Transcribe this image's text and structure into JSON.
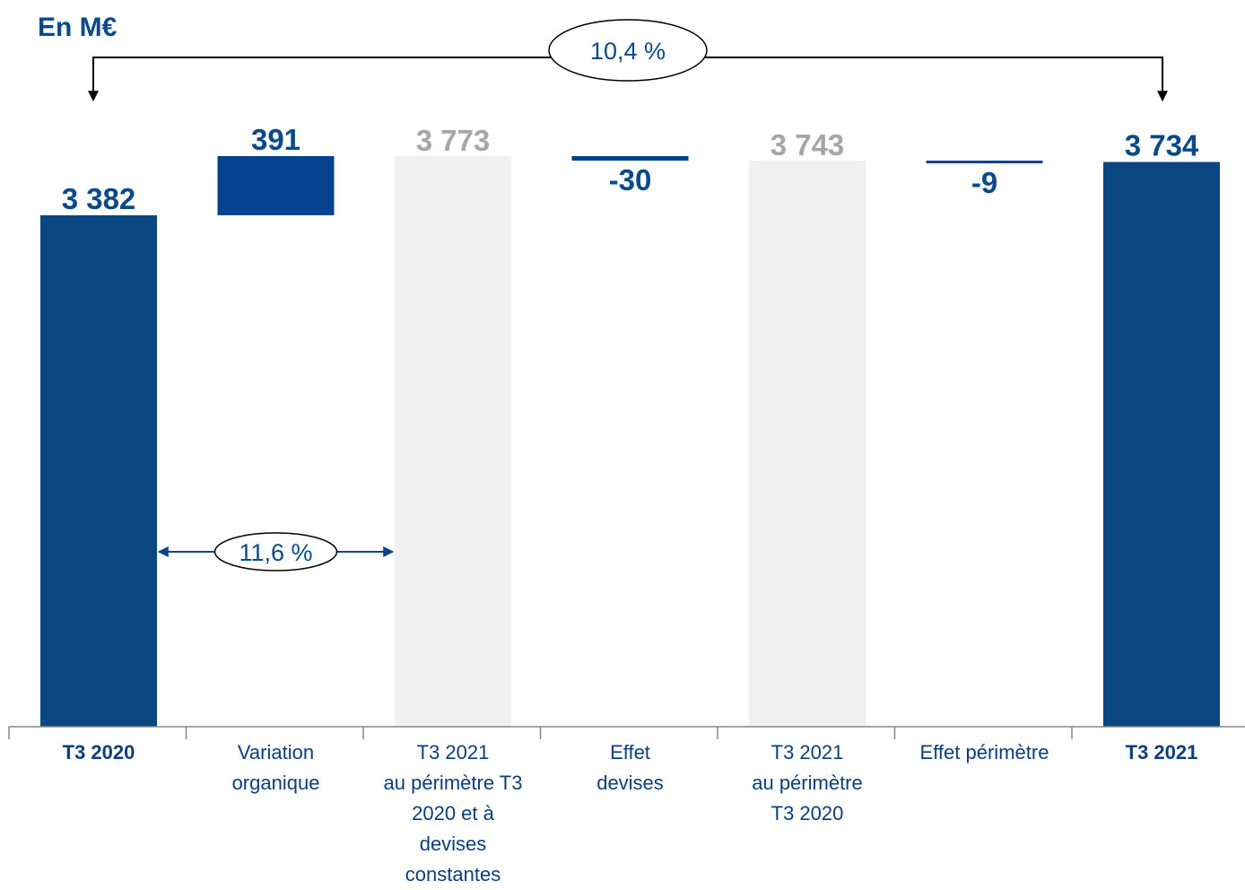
{
  "unit_label": "En M€",
  "chart_data": {
    "type": "bar",
    "subtype": "waterfall",
    "categories": [
      "T3 2020",
      "Variation organique",
      "T3 2021 au périmètre T3 2020 et à devises constantes",
      "Effet devises",
      "T3 2021 au périmètre T3 2020",
      "Effet périmètre",
      "T3 2021"
    ],
    "category_lines": [
      "T3 2020",
      "Variation\norganique",
      "T3 2021\nau périmètre T3\n2020 et à\ndevises\nconstantes",
      "Effet\ndevises",
      "T3 2021\nau périmètre\nT3 2020",
      "Effet périmètre",
      "T3 2021"
    ],
    "bold_categories": [
      0,
      6
    ],
    "values": [
      3382,
      391,
      3773,
      -30,
      3743,
      -9,
      3734
    ],
    "bar_kinds": [
      "total",
      "delta",
      "subtotal",
      "delta",
      "subtotal",
      "delta",
      "total"
    ],
    "value_labels": [
      "3 382",
      "391",
      "3 773",
      "-30",
      "3 743",
      "-9",
      "3 734"
    ],
    "ylim": [
      0,
      3773
    ],
    "annotations": [
      {
        "text": "10,4 %",
        "from": 0,
        "to": 6
      },
      {
        "text": "11,6 %",
        "from": 0,
        "to": 2
      }
    ],
    "colors": {
      "total": "#0a4782",
      "delta": "#06418f",
      "subtotal": "#f0f0f0",
      "label_dark": "#0a4a8a",
      "label_light": "#a6a6a6",
      "axis": "#888888",
      "arrow_top": "#000000",
      "arrow_inner": "#0a4782"
    }
  }
}
